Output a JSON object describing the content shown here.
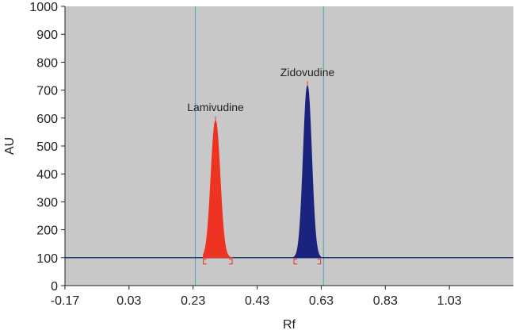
{
  "chart_data": {
    "type": "area",
    "xlabel": "Rf",
    "ylabel": "AU",
    "xlim": [
      -0.17,
      1.23
    ],
    "ylim": [
      0,
      1000
    ],
    "x_ticks": [
      "-0.17",
      "0.03",
      "0.23",
      "0.43",
      "0.63",
      "0.83",
      "1.03"
    ],
    "y_ticks": [
      "0",
      "100",
      "200",
      "300",
      "400",
      "500",
      "600",
      "700",
      "800",
      "900",
      "1000"
    ],
    "grid": false,
    "plot_background": "#c8c8c8",
    "baseline": 100,
    "series": [
      {
        "name": "Lamivudine",
        "color": "#ee3322",
        "peak_rf": 0.3,
        "peak_au": 590,
        "start_rf": 0.262,
        "end_rf": 0.352
      },
      {
        "name": "Zidovudine",
        "color": "#1a237e",
        "peak_rf": 0.587,
        "peak_au": 715,
        "start_rf": 0.545,
        "end_rf": 0.628
      }
    ],
    "vertical_lines_rf": [
      0.237,
      0.637
    ],
    "vertical_line_color": "#4aa8b8",
    "baseline_color": "#1e3a6e",
    "labels": [
      {
        "text": "Lamivudine",
        "rf": 0.3,
        "au": 625
      },
      {
        "text": "Zidovudine",
        "rf": 0.587,
        "au": 750
      }
    ]
  }
}
